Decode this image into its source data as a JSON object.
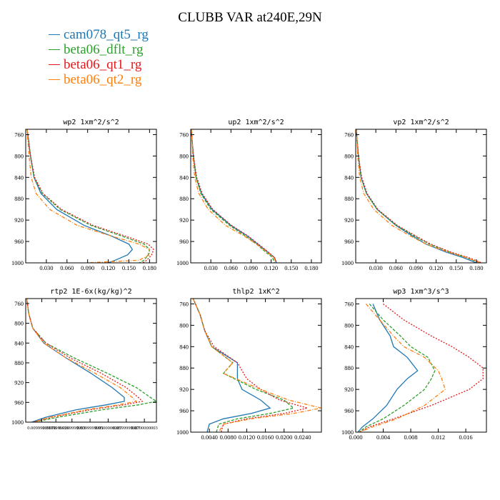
{
  "title": "CLUBB VAR at240E,29N",
  "legend": [
    {
      "name": "cam078_qt5_rg",
      "color": "#1f77b4"
    },
    {
      "name": "beta06_dflt_rg",
      "color": "#2ca02c"
    },
    {
      "name": "beta06_qt1_rg",
      "color": "#e31a1c"
    },
    {
      "name": "beta06_qt2_rg",
      "color": "#ff7f0e"
    }
  ],
  "chart_data": [
    {
      "type": "line",
      "title": "wp2 1xm^2/s^2",
      "xlim": [
        0,
        0.19
      ],
      "ylim": [
        1000,
        750
      ],
      "xticks": [
        0.03,
        0.06,
        0.09,
        0.12,
        0.15,
        0.18
      ],
      "xticklabels": [
        "0.030",
        "0.060",
        "0.090",
        "0.120",
        "0.150",
        "0.180"
      ],
      "yticks": [
        760,
        800,
        840,
        880,
        920,
        960,
        1000
      ],
      "series": [
        {
          "name": "cam078_qt5_rg",
          "y": [
            750,
            770,
            800,
            840,
            870,
            900,
            930,
            950,
            965,
            975,
            985,
            995,
            1000
          ],
          "x": [
            0.002,
            0.004,
            0.007,
            0.012,
            0.022,
            0.045,
            0.085,
            0.125,
            0.15,
            0.155,
            0.148,
            0.13,
            0.12
          ]
        },
        {
          "name": "beta06_dflt_rg",
          "y": [
            750,
            770,
            800,
            840,
            870,
            900,
            930,
            950,
            965,
            975,
            985,
            995,
            1000
          ],
          "x": [
            0.002,
            0.004,
            0.007,
            0.012,
            0.024,
            0.05,
            0.095,
            0.14,
            0.172,
            0.18,
            0.178,
            0.172,
            0.165
          ]
        },
        {
          "name": "beta06_qt1_rg",
          "y": [
            750,
            770,
            800,
            840,
            870,
            900,
            930,
            950,
            965,
            975,
            985,
            995,
            1000
          ],
          "x": [
            0.002,
            0.004,
            0.007,
            0.013,
            0.025,
            0.052,
            0.098,
            0.145,
            0.178,
            0.186,
            0.183,
            0.176,
            0.17
          ]
        },
        {
          "name": "beta06_qt2_rg",
          "y": [
            750,
            770,
            800,
            840,
            870,
            900,
            930,
            950,
            965,
            975,
            985,
            995,
            1000
          ],
          "x": [
            0.002,
            0.003,
            0.005,
            0.008,
            0.015,
            0.035,
            0.075,
            0.125,
            0.165,
            0.18,
            0.18,
            0.165,
            0.09
          ]
        }
      ]
    },
    {
      "type": "line",
      "title": "up2 1xm^2/s^2",
      "xlim": [
        0,
        0.195
      ],
      "ylim": [
        1000,
        750
      ],
      "xticks": [
        0.03,
        0.06,
        0.09,
        0.12,
        0.15,
        0.18
      ],
      "xticklabels": [
        "0.030",
        "0.060",
        "0.090",
        "0.120",
        "0.150",
        "0.180"
      ],
      "yticks": [
        760,
        800,
        840,
        880,
        920,
        960,
        1000
      ],
      "series": [
        {
          "name": "cam078_qt5_rg",
          "y": [
            750,
            770,
            800,
            840,
            870,
            900,
            930,
            950,
            965,
            980,
            990,
            1000
          ],
          "x": [
            0.001,
            0.002,
            0.004,
            0.008,
            0.016,
            0.032,
            0.06,
            0.085,
            0.1,
            0.115,
            0.125,
            0.128
          ]
        },
        {
          "name": "beta06_dflt_rg",
          "y": [
            750,
            770,
            800,
            840,
            870,
            900,
            930,
            950,
            965,
            980,
            990,
            1000
          ],
          "x": [
            0.001,
            0.002,
            0.004,
            0.008,
            0.015,
            0.03,
            0.058,
            0.082,
            0.098,
            0.112,
            0.122,
            0.125
          ]
        },
        {
          "name": "beta06_qt1_rg",
          "y": [
            750,
            770,
            800,
            840,
            870,
            900,
            930,
            950,
            965,
            980,
            990,
            1000
          ],
          "x": [
            0.001,
            0.002,
            0.004,
            0.009,
            0.017,
            0.033,
            0.061,
            0.086,
            0.101,
            0.116,
            0.125,
            0.128
          ]
        },
        {
          "name": "beta06_qt2_rg",
          "y": [
            750,
            770,
            800,
            840,
            870,
            900,
            930,
            950,
            965,
            980,
            990,
            1000
          ],
          "x": [
            0.001,
            0.002,
            0.003,
            0.006,
            0.012,
            0.026,
            0.052,
            0.08,
            0.098,
            0.114,
            0.124,
            0.127
          ]
        }
      ]
    },
    {
      "type": "line",
      "title": "vp2 1xm^2/s^2",
      "xlim": [
        0,
        0.195
      ],
      "ylim": [
        1000,
        750
      ],
      "xticks": [
        0.03,
        0.06,
        0.09,
        0.12,
        0.15,
        0.18
      ],
      "xticklabels": [
        "0.030",
        "0.060",
        "0.090",
        "0.120",
        "0.150",
        "0.180"
      ],
      "yticks": [
        760,
        800,
        840,
        880,
        920,
        960,
        1000
      ],
      "series": [
        {
          "name": "cam078_qt5_rg",
          "y": [
            750,
            770,
            800,
            840,
            870,
            900,
            930,
            950,
            965,
            980,
            990,
            1000
          ],
          "x": [
            0.001,
            0.002,
            0.004,
            0.008,
            0.016,
            0.032,
            0.06,
            0.085,
            0.105,
            0.135,
            0.16,
            0.18
          ]
        },
        {
          "name": "beta06_dflt_rg",
          "y": [
            750,
            770,
            800,
            840,
            870,
            900,
            930,
            950,
            965,
            980,
            990,
            1000
          ],
          "x": [
            0.001,
            0.002,
            0.004,
            0.008,
            0.016,
            0.032,
            0.061,
            0.088,
            0.11,
            0.14,
            0.165,
            0.185
          ]
        },
        {
          "name": "beta06_qt1_rg",
          "y": [
            750,
            770,
            800,
            840,
            870,
            900,
            930,
            950,
            965,
            980,
            990,
            1000
          ],
          "x": [
            0.001,
            0.002,
            0.004,
            0.009,
            0.017,
            0.033,
            0.062,
            0.09,
            0.112,
            0.142,
            0.168,
            0.188
          ]
        },
        {
          "name": "beta06_qt2_rg",
          "y": [
            750,
            770,
            800,
            840,
            870,
            900,
            930,
            950,
            965,
            980,
            990,
            1000
          ],
          "x": [
            0.001,
            0.002,
            0.003,
            0.006,
            0.012,
            0.027,
            0.054,
            0.082,
            0.105,
            0.138,
            0.165,
            0.186
          ]
        }
      ]
    },
    {
      "type": "line",
      "title": "rtp2 1E-6x(kg/kg)^2",
      "xlim": [
        0,
        6.5
      ],
      "ylim": [
        1000,
        750
      ],
      "xticks": [],
      "xticklabels": [
        "0.00999999978",
        "0.0199999996",
        "0.0299999993",
        "0.0399999991",
        "0.0500000007",
        "0.0599999987",
        "0.0700000003"
      ],
      "xticklabel_pos": [
        0.8,
        1.5,
        2.3,
        3.2,
        4.1,
        5.0,
        5.9
      ],
      "yticks": [
        760,
        800,
        840,
        880,
        920,
        960,
        1000
      ],
      "series": [
        {
          "name": "cam078_qt5_rg",
          "y": [
            750,
            780,
            810,
            840,
            870,
            900,
            930,
            950,
            958,
            965,
            975,
            990,
            1000
          ],
          "x": [
            0.05,
            0.15,
            0.35,
            0.9,
            2.0,
            3.2,
            4.3,
            4.9,
            4.9,
            4.0,
            2.5,
            1.0,
            0.3
          ]
        },
        {
          "name": "beta06_dflt_rg",
          "y": [
            750,
            780,
            810,
            840,
            870,
            900,
            930,
            950,
            958,
            965,
            975,
            990,
            1000
          ],
          "x": [
            0.05,
            0.15,
            0.35,
            1.0,
            2.4,
            4.0,
            5.5,
            6.2,
            6.5,
            5.6,
            3.8,
            1.6,
            0.4
          ]
        },
        {
          "name": "beta06_qt1_rg",
          "y": [
            750,
            780,
            810,
            840,
            870,
            900,
            930,
            950,
            958,
            965,
            975,
            990,
            1000
          ],
          "x": [
            0.05,
            0.15,
            0.35,
            1.0,
            2.2,
            3.7,
            5.0,
            5.6,
            5.8,
            4.9,
            3.2,
            1.3,
            0.4
          ]
        },
        {
          "name": "beta06_qt2_rg",
          "y": [
            750,
            780,
            810,
            840,
            870,
            900,
            930,
            950,
            958,
            965,
            975,
            990,
            1000
          ],
          "x": [
            0.05,
            0.15,
            0.35,
            0.9,
            2.0,
            3.4,
            4.7,
            5.3,
            5.5,
            4.6,
            3.0,
            1.2,
            0.4
          ]
        }
      ]
    },
    {
      "type": "line",
      "title": "thlp2 1xK^2",
      "xlim": [
        0,
        0.028
      ],
      "ylim": [
        1000,
        750
      ],
      "xticks": [
        0.004,
        0.008,
        0.012,
        0.016,
        0.02,
        0.024
      ],
      "xticklabels": [
        "0.0040",
        "0.0080",
        "0.0120",
        "0.0160",
        "0.0200",
        "0.0240"
      ],
      "yticks": [
        760,
        800,
        840,
        880,
        920,
        960,
        1000
      ],
      "series": [
        {
          "name": "cam078_qt5_rg",
          "y": [
            750,
            780,
            810,
            840,
            870,
            900,
            920,
            940,
            955,
            965,
            975,
            985,
            1000
          ],
          "x": [
            0.0005,
            0.002,
            0.003,
            0.0045,
            0.01,
            0.01,
            0.011,
            0.015,
            0.017,
            0.013,
            0.007,
            0.004,
            0.0035
          ]
        },
        {
          "name": "beta06_dflt_rg",
          "y": [
            750,
            780,
            810,
            840,
            870,
            890,
            920,
            940,
            955,
            965,
            975,
            985,
            1000
          ],
          "x": [
            0.0005,
            0.002,
            0.003,
            0.0045,
            0.009,
            0.007,
            0.014,
            0.02,
            0.022,
            0.017,
            0.01,
            0.006,
            0.0055
          ]
        },
        {
          "name": "beta06_qt1_rg",
          "y": [
            750,
            780,
            810,
            840,
            870,
            900,
            920,
            940,
            955,
            965,
            975,
            985,
            1000
          ],
          "x": [
            0.0005,
            0.002,
            0.003,
            0.005,
            0.01,
            0.012,
            0.015,
            0.019,
            0.025,
            0.02,
            0.012,
            0.007,
            0.0065
          ]
        },
        {
          "name": "beta06_qt2_rg",
          "y": [
            750,
            780,
            810,
            840,
            870,
            890,
            920,
            940,
            955,
            965,
            975,
            985,
            1000
          ],
          "x": [
            0.0005,
            0.002,
            0.003,
            0.0045,
            0.009,
            0.007,
            0.015,
            0.021,
            0.028,
            0.022,
            0.013,
            0.007,
            0.006
          ]
        }
      ]
    },
    {
      "type": "line",
      "title": "wp3 1xm^3/s^3",
      "xlim": [
        0,
        0.019
      ],
      "ylim": [
        1000,
        750
      ],
      "xticks": [
        0.0,
        0.004,
        0.008,
        0.012,
        0.016
      ],
      "xticklabels": [
        "0.000",
        "0.004",
        "0.008",
        "0.012",
        "0.016"
      ],
      "yticks": [
        760,
        800,
        840,
        880,
        920,
        960,
        1000
      ],
      "series": [
        {
          "name": "cam078_qt5_rg",
          "y": [
            760,
            790,
            820,
            840,
            860,
            885,
            900,
            920,
            950,
            975,
            990,
            1000
          ],
          "x": [
            0.0025,
            0.0035,
            0.005,
            0.0055,
            0.0075,
            0.009,
            0.0075,
            0.006,
            0.0045,
            0.0025,
            0.001,
            0.0003
          ]
        },
        {
          "name": "beta06_dflt_rg",
          "y": [
            760,
            790,
            820,
            840,
            860,
            885,
            900,
            920,
            950,
            975,
            990,
            1000
          ],
          "x": [
            0.002,
            0.004,
            0.0065,
            0.008,
            0.0105,
            0.0115,
            0.011,
            0.01,
            0.007,
            0.004,
            0.0015,
            0.0005
          ]
        },
        {
          "name": "beta06_qt1_rg",
          "y": [
            760,
            790,
            820,
            840,
            860,
            880,
            900,
            920,
            950,
            975,
            990,
            1000
          ],
          "x": [
            0.004,
            0.007,
            0.011,
            0.014,
            0.0165,
            0.0185,
            0.0185,
            0.0165,
            0.011,
            0.0055,
            0.002,
            0.0005
          ]
        },
        {
          "name": "beta06_qt2_rg",
          "y": [
            760,
            790,
            820,
            840,
            860,
            885,
            900,
            920,
            950,
            975,
            990,
            1000
          ],
          "x": [
            0.0015,
            0.0035,
            0.0055,
            0.007,
            0.01,
            0.012,
            0.0125,
            0.013,
            0.01,
            0.006,
            0.0025,
            0.0005
          ]
        }
      ]
    }
  ]
}
